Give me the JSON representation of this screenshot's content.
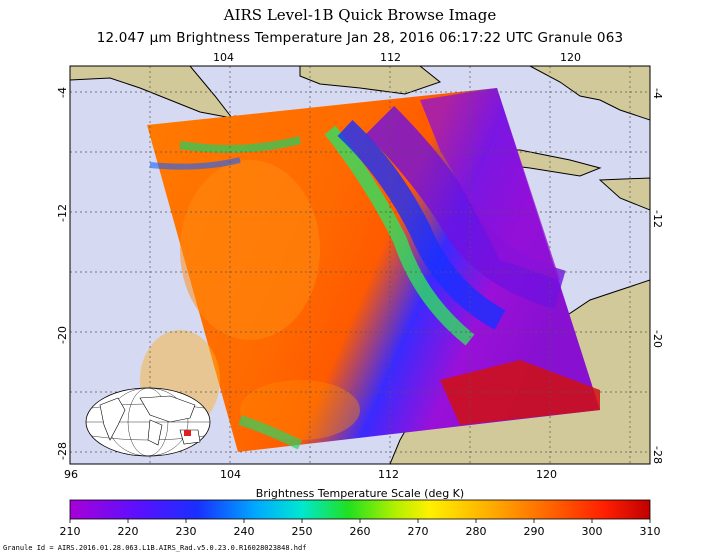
{
  "header": {
    "title": "AIRS Level-1B Quick Browse Image",
    "subtitle": "12.047 μm Brightness Temperature    Jan 28, 2016 06:17:22 UTC   Granule 063"
  },
  "map": {
    "lon_ticks_top": [
      "104",
      "112",
      "120"
    ],
    "lon_ticks_bottom": [
      "96",
      "104",
      "112",
      "120"
    ],
    "lat_ticks_left": [
      "-4",
      "-12",
      "-20",
      "-28"
    ],
    "lat_ticks_right": [
      "-4",
      "-12",
      "-20",
      "-28"
    ],
    "lon_range": [
      96,
      125
    ],
    "lat_range": [
      -28.5,
      -2.5
    ],
    "colors": {
      "ocean": "#d6d9f2",
      "land": "#d2c99a",
      "grid": "#555555"
    }
  },
  "colorbar": {
    "title": "Brightness Temperature Scale (deg K)",
    "ticks": [
      "210",
      "220",
      "230",
      "240",
      "250",
      "260",
      "270",
      "280",
      "290",
      "300",
      "310"
    ],
    "range": [
      210,
      310
    ]
  },
  "footer": {
    "granule_id": "Granule Id = AIRS.2016.01.28.063.L1B.AIRS_Rad.v5.0.23.0.R16028023848.hdf"
  }
}
